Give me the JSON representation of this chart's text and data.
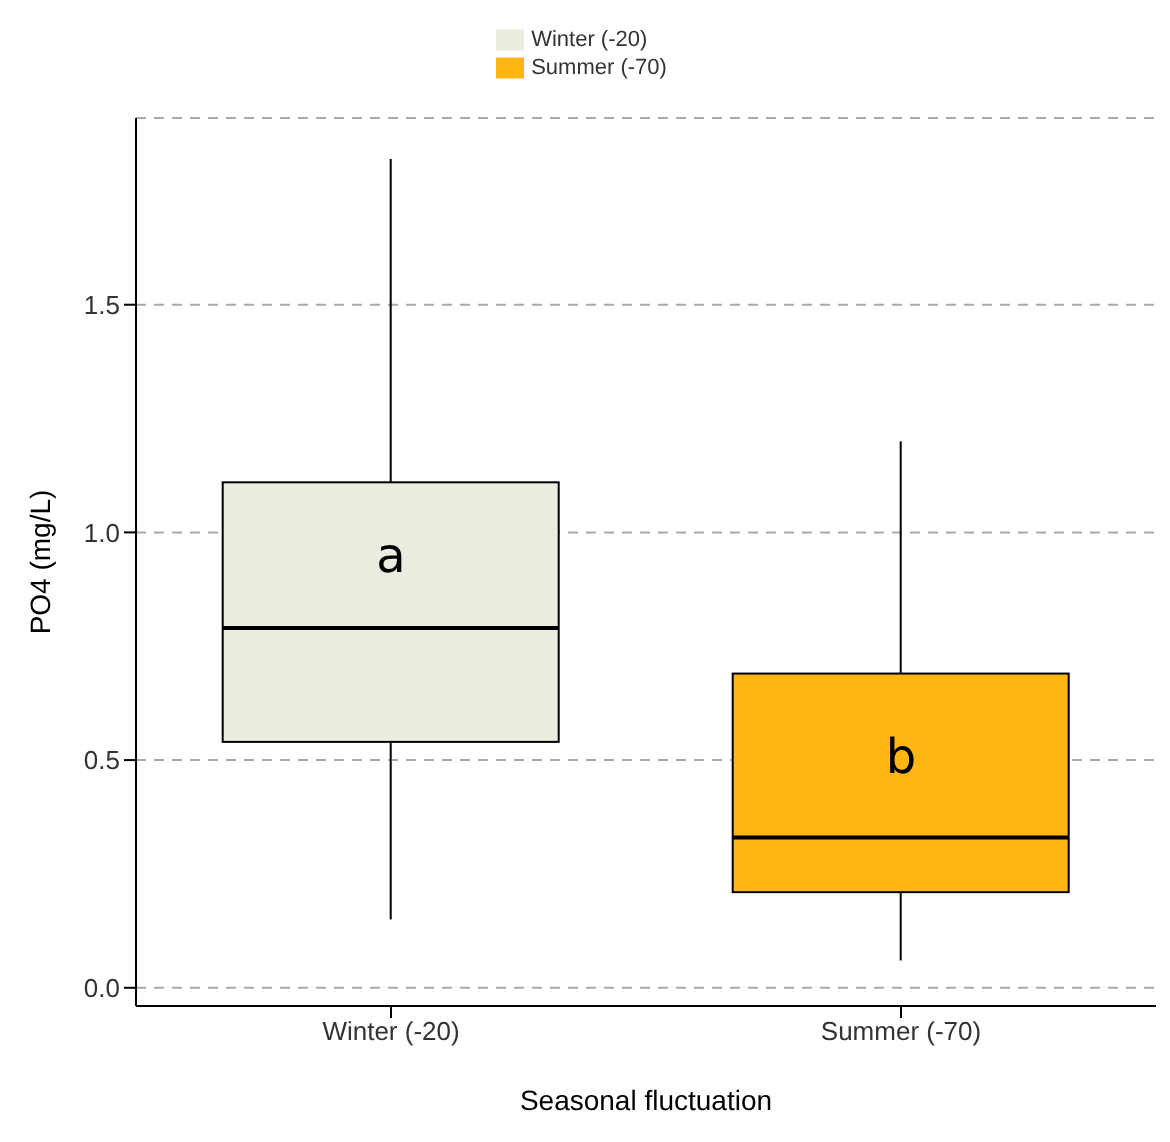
{
  "chart_data": {
    "type": "box",
    "xlabel": "Seasonal fluctuation",
    "ylabel": "PO4 (mg/L)",
    "categories": [
      "Winter (-20)",
      "Summer (-70)"
    ],
    "series": [
      {
        "name": "Winter (-20)",
        "color": "#ebebe0",
        "boxes": [
          {
            "low": 0.15,
            "q1": 0.54,
            "median": 0.79,
            "q3": 1.11,
            "high": 1.82
          },
          null
        ]
      },
      {
        "name": "Summer (-70)",
        "color": "#ffb612",
        "boxes": [
          null,
          {
            "low": 0.06,
            "q1": 0.21,
            "median": 0.33,
            "q3": 0.69,
            "high": 1.2
          }
        ]
      }
    ],
    "ylim": [
      -0.04,
      1.91
    ],
    "yticks": [
      {
        "value": 0,
        "label": "0.0"
      },
      0.5,
      {
        "value": 1,
        "label": "1.0"
      },
      1.5
    ],
    "grid": "y",
    "legend": "top",
    "annotations": [
      "a",
      "b"
    ]
  }
}
